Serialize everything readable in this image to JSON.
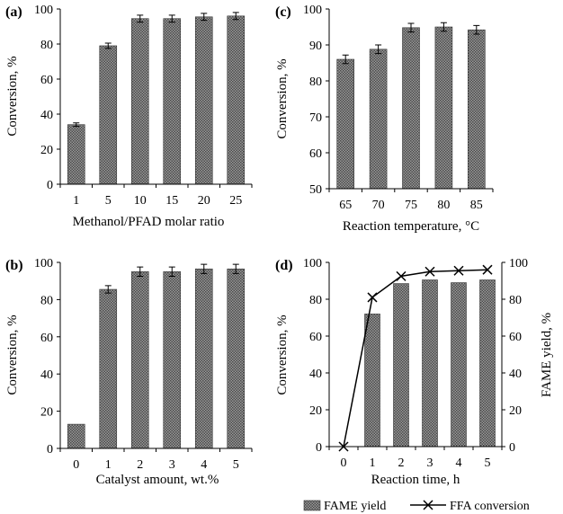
{
  "colors": {
    "bar_fill": "#7a7a7a",
    "line": "#000000",
    "background": "#ffffff"
  },
  "legend": {
    "bar_label": "FAME yield",
    "line_label": "FFA conversion",
    "placement": "bottom-right"
  },
  "chart_data": [
    {
      "panel": "(a)",
      "type": "bar",
      "categories": [
        "1",
        "5",
        "10",
        "15",
        "20",
        "25"
      ],
      "values": [
        34,
        79,
        94.5,
        94.5,
        95.5,
        96
      ],
      "errors": [
        1,
        1.5,
        2,
        2,
        2,
        2
      ],
      "ylabel": "Conversion, %",
      "xlabel": "Methanol/PFAD molar ratio",
      "ylim": [
        0,
        100
      ],
      "yticks": [
        0,
        20,
        40,
        60,
        80,
        100
      ]
    },
    {
      "panel": "(c)",
      "type": "bar",
      "categories": [
        "65",
        "70",
        "75",
        "80",
        "85"
      ],
      "values": [
        86,
        88.8,
        94.8,
        95,
        94.2
      ],
      "errors": [
        1.2,
        1.2,
        1.2,
        1.2,
        1.2
      ],
      "ylabel": "Conversion, %",
      "xlabel": "Reaction temperature, °C",
      "ylim": [
        50,
        100
      ],
      "yticks": [
        50,
        60,
        70,
        80,
        90,
        100
      ]
    },
    {
      "panel": "(b)",
      "type": "bar",
      "categories": [
        "0",
        "1",
        "2",
        "3",
        "4",
        "5"
      ],
      "values": [
        13,
        85.5,
        95,
        95,
        96.5,
        96.5
      ],
      "errors": [
        0,
        2,
        2.5,
        2.5,
        2.5,
        2.5
      ],
      "ylabel": "Conversion, %",
      "xlabel": "Catalyst amount, wt.%",
      "ylim": [
        0,
        100
      ],
      "yticks": [
        0,
        20,
        40,
        60,
        80,
        100
      ]
    },
    {
      "panel": "(d)",
      "type": "bar+line",
      "categories": [
        "0",
        "1",
        "2",
        "3",
        "4",
        "5"
      ],
      "bar_series": {
        "name": "FAME yield",
        "values": [
          0,
          72,
          88.5,
          90.5,
          89,
          90.5
        ]
      },
      "line_series": {
        "name": "FFA conversion",
        "values": [
          0,
          81,
          92.5,
          95,
          95.5,
          96
        ]
      },
      "ylabel": "Conversion, %",
      "y2label": "FAME yield, %",
      "xlabel": "Reaction time, h",
      "ylim": [
        0,
        100
      ],
      "yticks": [
        0,
        20,
        40,
        60,
        80,
        100
      ],
      "y2lim": [
        0,
        100
      ],
      "y2ticks": [
        0,
        20,
        40,
        60,
        80,
        100
      ]
    }
  ]
}
